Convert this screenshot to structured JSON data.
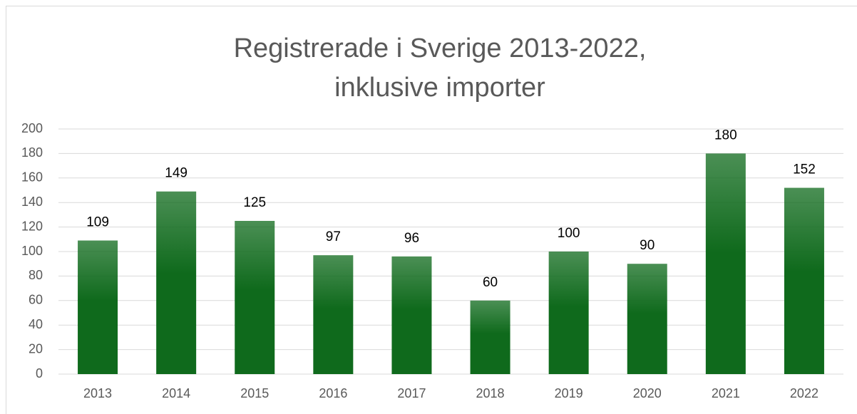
{
  "chart_data": {
    "type": "bar",
    "title": [
      "Registrerade i Sverige 2013-2022,",
      "inklusive importer"
    ],
    "categories": [
      "2013",
      "2014",
      "2015",
      "2016",
      "2017",
      "2018",
      "2019",
      "2020",
      "2021",
      "2022"
    ],
    "values": [
      109,
      149,
      125,
      97,
      96,
      60,
      100,
      90,
      180,
      152
    ],
    "color": "#0f6a1c",
    "ylim": [
      0,
      200
    ],
    "yticks": [
      0,
      20,
      40,
      60,
      80,
      100,
      120,
      140,
      160,
      180,
      200
    ],
    "grid": true
  }
}
